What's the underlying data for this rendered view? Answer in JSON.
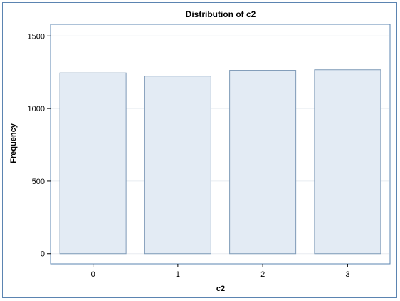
{
  "chart_data": {
    "type": "bar",
    "title": "Distribution of c2",
    "xlabel": "c2",
    "ylabel": "Frequency",
    "categories": [
      "0",
      "1",
      "2",
      "3"
    ],
    "values": [
      1245,
      1223,
      1263,
      1267
    ],
    "ylim": [
      -70,
      1580
    ],
    "yticks": [
      0,
      500,
      1000,
      1500
    ],
    "ytick_labels": [
      "0",
      "500",
      "1000",
      "1500"
    ],
    "grid": true,
    "legend": "none",
    "colors": {
      "bar_fill": "#e3ebf4",
      "bar_stroke": "#7e9ab7",
      "frame": "#5b84b1",
      "grid": "#e8ecf0"
    }
  }
}
